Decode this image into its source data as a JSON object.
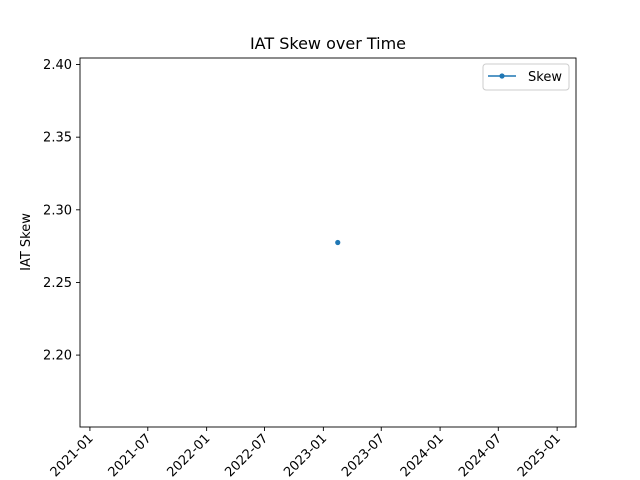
{
  "chart_data": {
    "type": "line",
    "title": "IAT Skew over Time",
    "xlabel": "",
    "ylabel": "IAT Skew",
    "x_tick_labels": [
      "2021-01",
      "2021-07",
      "2022-01",
      "2022-07",
      "2023-01",
      "2023-07",
      "2024-01",
      "2024-07",
      "2025-01"
    ],
    "y_ticks": [
      2.2,
      2.25,
      2.3,
      2.35,
      2.4
    ],
    "y_tick_labels": [
      "2.20",
      "2.25",
      "2.30",
      "2.35",
      "2.40"
    ],
    "ylim": [
      2.1505,
      2.4045
    ],
    "xlim": [
      "2020-12-01",
      "2025-03-01"
    ],
    "grid": false,
    "legend_position": "top-right",
    "series": [
      {
        "name": "Skew",
        "color": "#1f77b4",
        "marker": "dot",
        "points": [
          {
            "x": "2023-02-15",
            "y": 2.2775
          }
        ]
      }
    ]
  }
}
